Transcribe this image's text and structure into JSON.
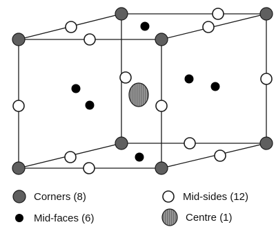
{
  "diagram": {
    "colors": {
      "edge": "#1a1a1a",
      "corner": "#5f5f5f",
      "mid_face": "#000000",
      "mid_side": "#ffffff",
      "centre_fill": "#9a9a9a",
      "centre_stripe": "#777777"
    }
  },
  "legend": {
    "corners": "Corners (8)",
    "mid_sides": "Mid-sides (12)",
    "mid_faces": "Mid-faces (6)",
    "centre": "Centre (1)"
  }
}
